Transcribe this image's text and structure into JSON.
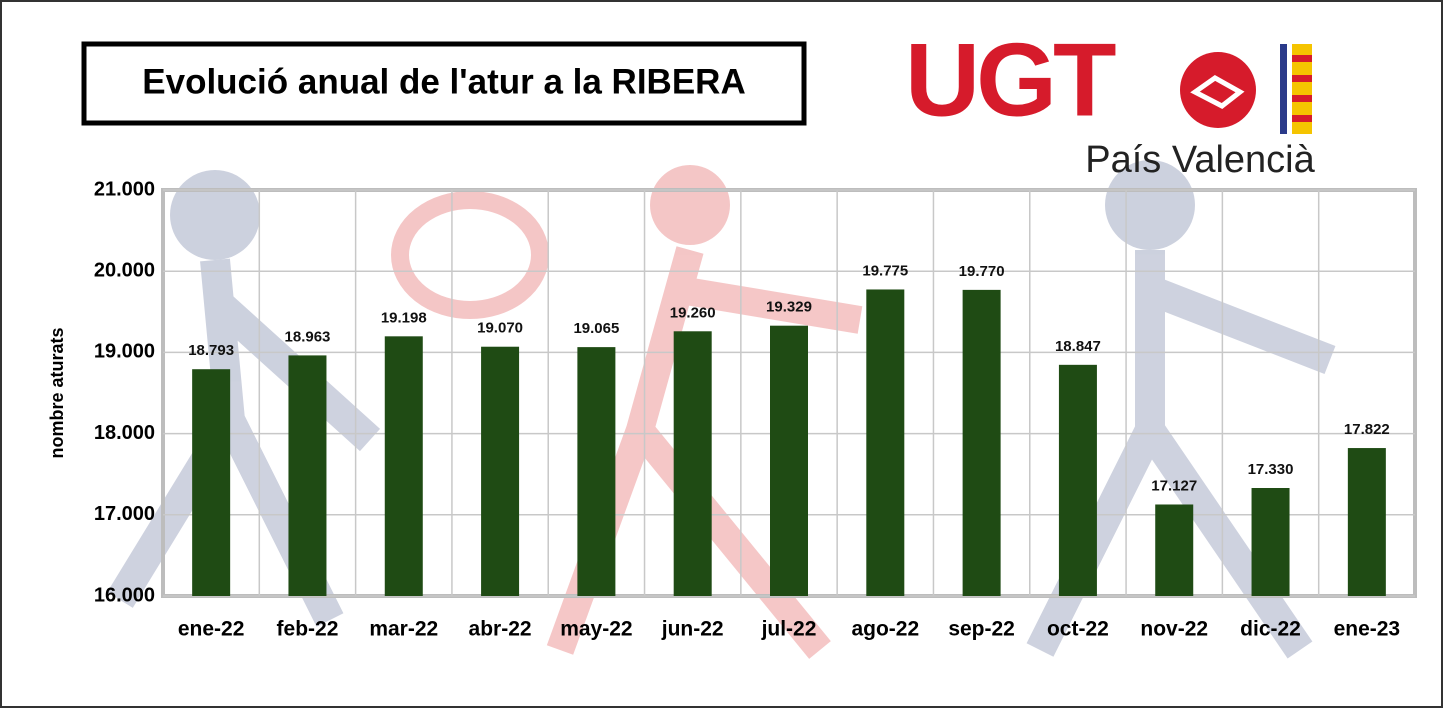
{
  "chart_data": {
    "type": "bar",
    "title": "Evolució anual de l'atur a la RIBERA",
    "logo": {
      "text": "UGT",
      "subtitle": "País Valencià"
    },
    "y_label": "nombre aturats",
    "categories": [
      "ene-22",
      "feb-22",
      "mar-22",
      "abr-22",
      "may-22",
      "jun-22",
      "jul-22",
      "ago-22",
      "sep-22",
      "oct-22",
      "nov-22",
      "dic-22",
      "ene-23"
    ],
    "values": [
      18793,
      18963,
      19198,
      19070,
      19065,
      19260,
      19329,
      19775,
      19770,
      18847,
      17127,
      17330,
      17822
    ],
    "value_labels": [
      "18.793",
      "18.963",
      "19.198",
      "19.070",
      "19.065",
      "19.260",
      "19.329",
      "19.775",
      "19.770",
      "18.847",
      "17.127",
      "17.330",
      "17.822"
    ],
    "color": "#1f4b14",
    "ylim": [
      16000,
      21000
    ],
    "yticks": [
      {
        "value": 16000,
        "label": "16.000"
      },
      {
        "value": 17000,
        "label": "17.000"
      },
      {
        "value": 18000,
        "label": "18.000"
      },
      {
        "value": 19000,
        "label": "19.000"
      },
      {
        "value": 20000,
        "label": "20.000"
      },
      {
        "value": 21000,
        "label": "21.000"
      }
    ],
    "grid": true
  }
}
